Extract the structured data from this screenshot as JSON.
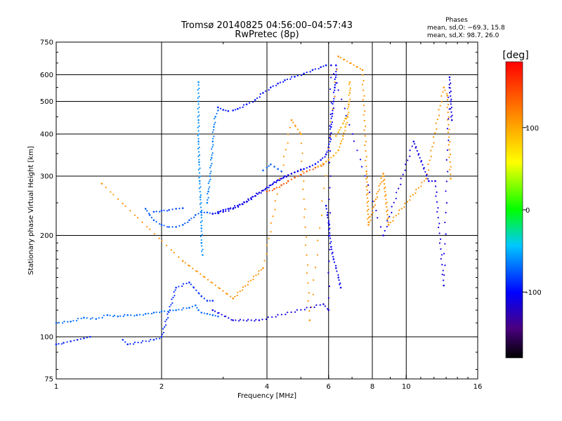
{
  "chart_data": {
    "type": "scatter",
    "title": "Tromsø 20140825 04:56:00–04:57:43",
    "subtitle": "RwPretec (8p)",
    "xlabel": "Frequency [MHz]",
    "ylabel": "Stationary phase Virtual Height [km]",
    "x_scale": "log",
    "y_scale": "log",
    "xlim": [
      1,
      16
    ],
    "ylim": [
      75,
      750
    ],
    "grid": true,
    "x_ticks": [
      1,
      2,
      4,
      6,
      8,
      10,
      16
    ],
    "x_tick_labels": [
      "1",
      "2",
      "4",
      "6",
      "8",
      "10",
      "16"
    ],
    "x_gridlines": [
      2,
      4,
      6,
      8,
      10
    ],
    "y_ticks": [
      75,
      100,
      200,
      300,
      400,
      500,
      600,
      750
    ],
    "y_tick_labels": [
      "75",
      "100",
      "200",
      "300",
      "400",
      "500",
      "600",
      "750"
    ],
    "y_gridlines": [
      100,
      200,
      300,
      400,
      500,
      600
    ],
    "colorbar": {
      "label": "[deg]",
      "range": [
        -180,
        180
      ],
      "ticks": [
        100,
        0,
        -100
      ],
      "tick_labels": [
        "100",
        "0",
        "-100"
      ]
    },
    "legend": {
      "title": "Phases",
      "line1": "mean, sd,O: −69.3, 15.8",
      "line2": "mean, sd,X: 98.7, 26.0",
      "placement": "top-right"
    },
    "series": [
      {
        "points": [
          [
            1.0,
            95
          ],
          [
            1.05,
            96
          ],
          [
            1.1,
            97
          ],
          [
            1.15,
            98
          ],
          [
            1.2,
            99
          ],
          [
            1.25,
            100
          ]
        ],
        "phase": -90
      },
      {
        "points": [
          [
            1.0,
            110
          ],
          [
            1.1,
            111
          ],
          [
            1.2,
            114
          ],
          [
            1.3,
            113
          ],
          [
            1.4,
            116
          ],
          [
            1.5,
            115
          ],
          [
            1.6,
            116
          ],
          [
            1.7,
            116
          ],
          [
            1.8,
            117
          ],
          [
            1.9,
            118
          ],
          [
            2.0,
            119
          ],
          [
            2.2,
            120
          ],
          [
            2.4,
            122
          ],
          [
            2.5,
            124
          ],
          [
            2.55,
            120
          ],
          [
            2.6,
            118
          ],
          [
            2.7,
            117
          ],
          [
            2.8,
            116
          ],
          [
            2.9,
            115
          ]
        ],
        "phase": -70
      },
      {
        "points": [
          [
            1.8,
            240
          ],
          [
            1.85,
            230
          ],
          [
            1.9,
            222
          ],
          [
            2.0,
            215
          ],
          [
            2.1,
            212
          ],
          [
            2.2,
            212
          ],
          [
            2.3,
            215
          ],
          [
            2.4,
            222
          ],
          [
            2.5,
            230
          ],
          [
            2.6,
            234
          ],
          [
            2.7,
            234
          ],
          [
            2.8,
            232
          ],
          [
            2.9,
            233
          ]
        ],
        "phase": -75
      },
      {
        "points": [
          [
            1.9,
            235
          ],
          [
            2.0,
            237
          ],
          [
            2.1,
            238
          ],
          [
            2.2,
            240
          ],
          [
            2.3,
            241
          ]
        ],
        "phase": -80
      },
      {
        "points": [
          [
            2.55,
            570
          ],
          [
            2.55,
            500
          ],
          [
            2.55,
            440
          ],
          [
            2.55,
            380
          ],
          [
            2.56,
            330
          ],
          [
            2.57,
            290
          ],
          [
            2.58,
            260
          ],
          [
            2.6,
            230
          ],
          [
            2.6,
            210
          ],
          [
            2.6,
            190
          ],
          [
            2.62,
            175
          ]
        ],
        "phase": -60
      },
      {
        "points": [
          [
            2.7,
            250
          ],
          [
            2.72,
            270
          ],
          [
            2.75,
            300
          ],
          [
            2.78,
            340
          ],
          [
            2.8,
            380
          ],
          [
            2.82,
            420
          ],
          [
            2.85,
            450
          ],
          [
            2.9,
            470
          ]
        ],
        "phase": -65
      },
      {
        "points": [
          [
            2.9,
            480
          ],
          [
            3.0,
            472
          ],
          [
            3.1,
            468
          ],
          [
            3.2,
            470
          ],
          [
            3.3,
            475
          ],
          [
            3.5,
            490
          ],
          [
            3.7,
            505
          ],
          [
            3.9,
            530
          ],
          [
            4.1,
            550
          ],
          [
            4.3,
            565
          ],
          [
            4.5,
            578
          ],
          [
            4.8,
            592
          ],
          [
            5.1,
            605
          ],
          [
            5.4,
            620
          ],
          [
            5.7,
            632
          ],
          [
            5.9,
            640
          ]
        ],
        "phase": -95
      },
      {
        "points": [
          [
            2.9,
            235
          ],
          [
            3.0,
            238
          ],
          [
            3.1,
            240
          ],
          [
            3.3,
            245
          ],
          [
            3.5,
            252
          ],
          [
            3.7,
            262
          ],
          [
            3.9,
            272
          ],
          [
            4.1,
            282
          ],
          [
            4.3,
            292
          ],
          [
            4.5,
            300
          ],
          [
            4.7,
            305
          ],
          [
            4.9,
            310
          ],
          [
            5.1,
            315
          ],
          [
            5.3,
            320
          ],
          [
            5.5,
            326
          ],
          [
            5.7,
            335
          ],
          [
            5.9,
            348
          ],
          [
            6.0,
            365
          ],
          [
            6.05,
            390
          ],
          [
            6.1,
            420
          ],
          [
            6.15,
            460
          ],
          [
            6.2,
            500
          ],
          [
            6.25,
            550
          ],
          [
            6.3,
            600
          ],
          [
            6.3,
            640
          ]
        ],
        "phase": -100
      },
      {
        "points": [
          [
            2.8,
            232
          ],
          [
            3.0,
            235
          ],
          [
            3.2,
            240
          ],
          [
            3.4,
            248
          ],
          [
            3.6,
            258
          ],
          [
            3.8,
            268
          ],
          [
            4.0,
            278
          ],
          [
            4.2,
            288
          ],
          [
            4.4,
            295
          ],
          [
            4.6,
            302
          ],
          [
            4.8,
            308
          ],
          [
            5.0,
            314
          ]
        ],
        "phase": -110
      },
      {
        "points": [
          [
            4.0,
            270
          ],
          [
            4.2,
            275
          ],
          [
            4.4,
            282
          ],
          [
            4.6,
            290
          ],
          [
            4.8,
            297
          ],
          [
            5.0,
            303
          ],
          [
            5.2,
            310
          ],
          [
            5.5,
            318
          ],
          [
            5.8,
            325
          ]
        ],
        "phase": 140
      },
      {
        "points": [
          [
            5.6,
            320
          ],
          [
            5.8,
            327
          ],
          [
            6.0,
            336
          ],
          [
            6.2,
            345
          ],
          [
            6.4,
            358
          ],
          [
            6.5,
            375
          ],
          [
            6.6,
            395
          ],
          [
            6.7,
            420
          ],
          [
            6.8,
            450
          ],
          [
            6.85,
            490
          ],
          [
            6.9,
            530
          ],
          [
            6.9,
            570
          ]
        ],
        "phase": 100
      },
      {
        "points": [
          [
            1.35,
            285
          ],
          [
            2.3,
            168
          ],
          [
            3.2,
            130
          ],
          [
            3.9,
            160
          ],
          [
            4.7,
            440
          ],
          [
            5.0,
            400
          ],
          [
            5.3,
            112
          ],
          [
            6.4,
            680
          ],
          [
            7.5,
            620
          ],
          [
            7.7,
            310
          ],
          [
            7.8,
            215
          ],
          [
            8.6,
            305
          ],
          [
            8.9,
            215
          ],
          [
            11.4,
            295
          ],
          [
            12.8,
            550
          ],
          [
            13.1,
            520
          ],
          [
            13.4,
            295
          ]
        ],
        "phase": 110
      },
      {
        "points": [
          [
            2.8,
            120
          ],
          [
            3.2,
            112
          ],
          [
            3.8,
            112
          ],
          [
            5.8,
            125
          ],
          [
            6.0,
            120
          ],
          [
            6.1,
            640
          ],
          [
            8.6,
            200
          ],
          [
            10.5,
            380
          ],
          [
            11.6,
            290
          ],
          [
            12.1,
            290
          ],
          [
            12.8,
            142
          ],
          [
            13.3,
            590
          ],
          [
            13.4,
            500
          ],
          [
            13.5,
            440
          ]
        ],
        "phase": -110
      },
      {
        "points": [
          [
            5.9,
            245
          ],
          [
            5.95,
            230
          ],
          [
            6.0,
            218
          ],
          [
            6.05,
            200
          ],
          [
            6.1,
            185
          ],
          [
            6.2,
            170
          ],
          [
            6.3,
            160
          ],
          [
            6.4,
            150
          ],
          [
            6.5,
            140
          ]
        ],
        "phase": -105
      },
      {
        "points": [
          [
            1.55,
            98
          ],
          [
            1.6,
            95
          ],
          [
            1.9,
            98
          ],
          [
            2.0,
            100
          ],
          [
            2.2,
            140
          ],
          [
            2.4,
            145
          ],
          [
            2.6,
            132
          ],
          [
            2.7,
            128
          ],
          [
            2.8,
            128
          ]
        ],
        "phase": -88
      },
      {
        "points": [
          [
            3.9,
            312
          ],
          [
            4.0,
            318
          ],
          [
            4.1,
            325
          ],
          [
            4.2,
            320
          ],
          [
            4.3,
            315
          ],
          [
            4.4,
            310
          ]
        ],
        "phase": -72
      },
      {
        "points": [
          [
            6.3,
            395
          ],
          [
            6.4,
            405
          ],
          [
            6.5,
            418
          ],
          [
            6.6,
            430
          ],
          [
            6.7,
            445
          ]
        ],
        "phase": 95
      }
    ]
  }
}
